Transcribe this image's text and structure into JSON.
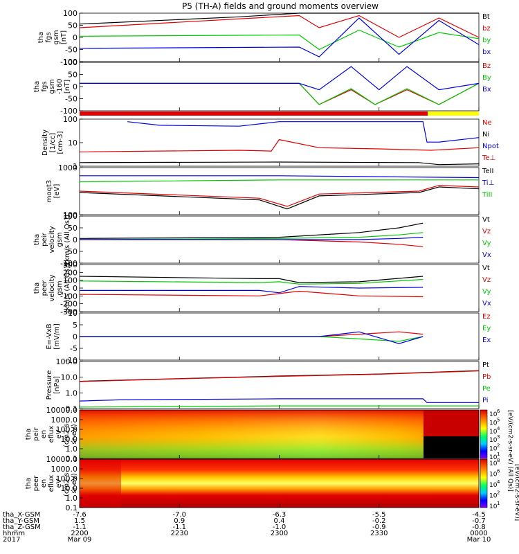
{
  "title": "P5 (TH-A) fields and ground moments overview",
  "colors": {
    "black": "#000000",
    "red": "#e00000",
    "green": "#00c800",
    "blue": "#0000e0",
    "yellow": "#ffff00"
  },
  "x_axis": {
    "rows": [
      {
        "label": "tha_X-GSM",
        "values": [
          "-7.6",
          "-7.0",
          "-6.3",
          "-5.5",
          "-4.5"
        ]
      },
      {
        "label": "tha_Y-GSM",
        "values": [
          "1.5",
          "0.9",
          "0.4",
          "-0.2",
          "-0.7"
        ]
      },
      {
        "label": "tha_Z-GSM",
        "values": [
          "-1.1",
          "-1.1",
          "-1.0",
          "-0.9",
          "-0.8"
        ]
      },
      {
        "label": "hhmm",
        "values": [
          "2200",
          "2230",
          "2300",
          "2330",
          "0000"
        ]
      },
      {
        "label": "2017",
        "values": [
          "Mar 09",
          "",
          "",
          "",
          "Mar 10"
        ]
      }
    ]
  },
  "chart_data": [
    {
      "type": "line",
      "ylabel": [
        "tha",
        "fgs",
        "gsm",
        "[nT]"
      ],
      "yticks": [
        "100",
        "50",
        "0",
        "-50",
        "-100"
      ],
      "ylim": [
        -100,
        100
      ],
      "legend": [
        "Bt",
        "bz",
        "by",
        "bx"
      ],
      "series": [
        {
          "name": "Bt",
          "color": "black",
          "x": [
            0,
            0.4,
            0.55,
            0.6,
            1.0
          ],
          "y": [
            55,
            85,
            100,
            100,
            100
          ]
        },
        {
          "name": "bz",
          "color": "red",
          "x": [
            0,
            0.55,
            0.6,
            0.7,
            0.8,
            0.9,
            1.0
          ],
          "y": [
            40,
            90,
            40,
            90,
            0,
            80,
            0
          ]
        },
        {
          "name": "by",
          "color": "green",
          "x": [
            0,
            0.55,
            0.6,
            0.7,
            0.8,
            0.9,
            1.0
          ],
          "y": [
            5,
            10,
            -50,
            30,
            -40,
            20,
            -5
          ]
        },
        {
          "name": "bx",
          "color": "blue",
          "x": [
            0,
            0.55,
            0.6,
            0.7,
            0.8,
            0.9,
            1.0
          ],
          "y": [
            -45,
            -40,
            -80,
            80,
            -70,
            70,
            -30
          ]
        }
      ]
    },
    {
      "type": "line",
      "ylabel": [
        "tha",
        "fgs",
        "gsm",
        "-160",
        "[nT]"
      ],
      "yticks": [
        "100",
        "50",
        "0",
        "-50",
        "-100"
      ],
      "ylim": [
        -130,
        100
      ],
      "legend": [
        "Bz",
        "By",
        "Bx"
      ],
      "series": [
        {
          "name": "Bz",
          "color": "red",
          "x": [
            0,
            0.55,
            0.6,
            0.68,
            0.74,
            0.82,
            0.9,
            1.0
          ],
          "y": [
            0,
            0,
            -100,
            -30,
            -100,
            -30,
            -100,
            0
          ]
        },
        {
          "name": "By",
          "color": "green",
          "x": [
            0,
            0.55,
            0.6,
            0.68,
            0.74,
            0.82,
            0.9,
            1.0
          ],
          "y": [
            0,
            0,
            -100,
            -25,
            -100,
            -25,
            -100,
            0
          ]
        },
        {
          "name": "Bx",
          "color": "blue",
          "x": [
            0,
            0.55,
            0.6,
            0.68,
            0.75,
            0.82,
            0.9,
            1.0
          ],
          "y": [
            0,
            0,
            -30,
            80,
            -30,
            80,
            -30,
            0
          ]
        }
      ]
    },
    {
      "type": "line",
      "ylabel": [
        "Density",
        "[1/cc]",
        "[cm-3]"
      ],
      "yticks": [
        "100",
        "10",
        "1"
      ],
      "ylim": [
        1,
        200
      ],
      "log": true,
      "legend": [
        "Ne",
        "Ni",
        "Npot",
        "Te⊥"
      ],
      "series": [
        {
          "name": "Npot",
          "color": "blue",
          "x": [
            0.12,
            0.2,
            0.4,
            0.5,
            0.86,
            0.87,
            0.9,
            1.0
          ],
          "y": [
            150,
            100,
            90,
            150,
            150,
            15,
            15,
            25
          ]
        },
        {
          "name": "Ne",
          "color": "red",
          "x": [
            0,
            0.4,
            0.48,
            0.5,
            0.6,
            0.75,
            0.88,
            1.0
          ],
          "y": [
            5,
            6,
            5.5,
            20,
            8,
            7,
            6,
            8
          ]
        },
        {
          "name": "Ni",
          "color": "black",
          "x": [
            0,
            0.5,
            0.85,
            0.9,
            1.0
          ],
          "y": [
            1.5,
            1.6,
            1.5,
            1.2,
            1.3
          ]
        }
      ]
    },
    {
      "type": "line",
      "ylabel": [
        "moqt3",
        "[eV]"
      ],
      "yticks": [
        "1000",
        "100"
      ],
      "ylim": [
        40,
        4000
      ],
      "log": true,
      "legend": [
        "TeII",
        "Ti⊥",
        "TiII"
      ],
      "series": [
        {
          "name": "Ti⊥",
          "color": "blue",
          "x": [
            0,
            0.5,
            1.0
          ],
          "y": [
            1800,
            1800,
            1500
          ]
        },
        {
          "name": "TiII",
          "color": "green",
          "x": [
            0,
            0.5,
            1.0
          ],
          "y": [
            1000,
            1200,
            1200
          ]
        },
        {
          "name": "Te⊥",
          "color": "red",
          "x": [
            0,
            0.45,
            0.52,
            0.6,
            0.85,
            0.9,
            1.0
          ],
          "y": [
            400,
            200,
            90,
            300,
            400,
            700,
            600
          ]
        },
        {
          "name": "TeII",
          "color": "black",
          "x": [
            0,
            0.45,
            0.52,
            0.6,
            0.85,
            0.9,
            1.0
          ],
          "y": [
            350,
            170,
            70,
            250,
            350,
            600,
            500
          ]
        }
      ]
    },
    {
      "type": "line",
      "ylabel": [
        "tha",
        "peir",
        "velocity",
        "gsm",
        "[km/s (All Qs)]"
      ],
      "yticks": [
        "100",
        "50",
        "0",
        "-50",
        "-100"
      ],
      "ylim": [
        -100,
        100
      ],
      "legend": [
        "Vt",
        "Vz",
        "Vy",
        "Vx"
      ],
      "series": [
        {
          "name": "Vt",
          "color": "black",
          "x": [
            0,
            0.5,
            0.7,
            0.8,
            0.86
          ],
          "y": [
            5,
            10,
            30,
            50,
            70
          ]
        },
        {
          "name": "Vz",
          "color": "red",
          "x": [
            0,
            0.5,
            0.7,
            0.8,
            0.86
          ],
          "y": [
            0,
            0,
            -10,
            -20,
            -30
          ]
        },
        {
          "name": "Vy",
          "color": "green",
          "x": [
            0,
            0.5,
            0.7,
            0.8,
            0.86
          ],
          "y": [
            0,
            5,
            10,
            20,
            30
          ]
        },
        {
          "name": "Vx",
          "color": "blue",
          "x": [
            0,
            0.5,
            0.7,
            0.8,
            0.86
          ],
          "y": [
            0,
            0,
            0,
            5,
            10
          ]
        }
      ]
    },
    {
      "type": "line",
      "ylabel": [
        "tha",
        "peer",
        "velocity",
        "gsm",
        "[km/s (All Qs)]"
      ],
      "yticks": [
        "300",
        "200",
        "100",
        "0",
        "-100",
        "-200",
        "-300"
      ],
      "ylim": [
        -300,
        300
      ],
      "legend": [
        "Vt",
        "Vz",
        "Vy",
        "Vx"
      ],
      "series": [
        {
          "name": "Vt",
          "color": "black",
          "x": [
            0,
            0.45,
            0.5,
            0.55,
            0.7,
            0.86
          ],
          "y": [
            150,
            120,
            120,
            70,
            80,
            150
          ]
        },
        {
          "name": "Vy",
          "color": "green",
          "x": [
            0,
            0.45,
            0.5,
            0.55,
            0.7,
            0.86
          ],
          "y": [
            90,
            70,
            80,
            50,
            60,
            110
          ]
        },
        {
          "name": "Vx",
          "color": "blue",
          "x": [
            0,
            0.45,
            0.5,
            0.55,
            0.7,
            0.86
          ],
          "y": [
            -30,
            -30,
            -60,
            20,
            0,
            10
          ]
        },
        {
          "name": "Vz",
          "color": "red",
          "x": [
            0,
            0.45,
            0.5,
            0.55,
            0.7,
            0.86
          ],
          "y": [
            -80,
            -100,
            -70,
            -40,
            -100,
            -110
          ]
        }
      ]
    },
    {
      "type": "line",
      "ylabel": [
        "E=-VxB",
        "[mV/m]"
      ],
      "yticks": [
        "10",
        "5",
        "0",
        "-5",
        "-10"
      ],
      "ylim": [
        -10,
        10
      ],
      "legend": [
        "Ez",
        "Ey",
        "Ex"
      ],
      "series": [
        {
          "name": "Ez",
          "color": "red",
          "x": [
            0,
            0.6,
            0.7,
            0.8,
            0.86
          ],
          "y": [
            0,
            0,
            1,
            2,
            1
          ]
        },
        {
          "name": "Ey",
          "color": "green",
          "x": [
            0,
            0.6,
            0.7,
            0.8,
            0.86
          ],
          "y": [
            0,
            0,
            -1,
            -2,
            0
          ]
        },
        {
          "name": "Ex",
          "color": "blue",
          "x": [
            0,
            0.6,
            0.7,
            0.8,
            0.86
          ],
          "y": [
            0,
            0,
            2,
            -3,
            0
          ]
        }
      ]
    },
    {
      "type": "line",
      "ylabel": [
        "Pressure",
        "[nPa]"
      ],
      "yticks": [
        "100.0",
        "10.0",
        "1.0",
        "0.1"
      ],
      "ylim": [
        0.08,
        100
      ],
      "log": true,
      "legend": [
        "Pt",
        "Pb",
        "Pe",
        "Pi"
      ],
      "series": [
        {
          "name": "Pt",
          "color": "black",
          "x": [
            0,
            0.25,
            0.5,
            0.75,
            1.0
          ],
          "y": [
            5,
            7.5,
            11,
            15,
            25
          ]
        },
        {
          "name": "Pb",
          "color": "red",
          "x": [
            0,
            0.25,
            0.5,
            0.75,
            1.0
          ],
          "y": [
            4.8,
            7.3,
            10.5,
            14.5,
            24
          ]
        },
        {
          "name": "Pi",
          "color": "blue",
          "x": [
            0,
            0.1,
            0.5,
            0.86,
            0.87,
            1.0
          ],
          "y": [
            0.25,
            0.3,
            0.35,
            0.35,
            0.2,
            0.2
          ]
        },
        {
          "name": "Pe",
          "color": "green",
          "x": [
            0,
            0.5,
            0.9,
            1.0
          ],
          "y": [
            0.1,
            0.12,
            0.12,
            0.12
          ]
        }
      ]
    },
    {
      "type": "heatmap",
      "ylabel": [
        "tha",
        "peir",
        "en",
        "eflux",
        "eV",
        "(cm2-s-",
        "sr-eV)"
      ],
      "yticks": [
        "10000.0",
        "1000.0",
        "100.0",
        "10.0",
        "1.0",
        "0.1"
      ],
      "colorbar": {
        "label": "[eV/(cm2-s-sr-eV) (All Qs)]",
        "ticks": [
          "10",
          "10",
          "10",
          "10",
          "10",
          "10"
        ],
        "exponents": [
          "6",
          "5",
          "4",
          "3",
          "2",
          "1"
        ]
      }
    },
    {
      "type": "heatmap",
      "ylabel": [
        "tha",
        "peer",
        "en",
        "eflux",
        "eV",
        "(cm2-s-",
        "sr-eV)"
      ],
      "yticks": [
        "10000.0",
        "1000.0",
        "100.0",
        "10.0",
        "1.0",
        "0.1"
      ],
      "colorbar": {
        "label": "[eV/(cm2-s-sr-eV)]",
        "ticks": [
          "10",
          "10",
          "10",
          "10",
          "10"
        ],
        "exponents": [
          "8",
          "6",
          "4",
          "2",
          "1"
        ]
      }
    }
  ]
}
